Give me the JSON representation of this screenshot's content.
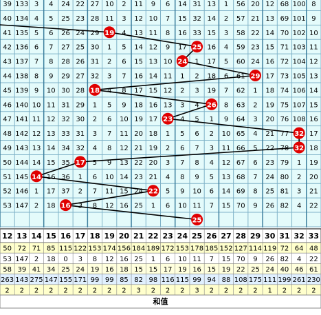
{
  "grid": {
    "rows": [
      [
        39,
        133,
        3,
        4,
        24,
        22,
        27,
        10,
        2,
        11,
        9,
        6,
        14,
        31,
        13,
        1,
        56,
        20,
        12,
        68,
        100,
        8
      ],
      [
        40,
        134,
        4,
        5,
        25,
        23,
        28,
        11,
        3,
        12,
        10,
        7,
        15,
        32,
        14,
        2,
        57,
        21,
        13,
        69,
        101,
        9
      ],
      [
        41,
        135,
        5,
        6,
        26,
        24,
        29,
        {
          "ball": 19
        },
        4,
        13,
        11,
        8,
        16,
        33,
        15,
        3,
        58,
        22,
        14,
        70,
        102,
        10
      ],
      [
        42,
        136,
        6,
        7,
        27,
        25,
        30,
        1,
        5,
        14,
        12,
        9,
        17,
        {
          "ball": 25
        },
        16,
        4,
        59,
        23,
        15,
        71,
        103,
        11
      ],
      [
        43,
        137,
        7,
        8,
        28,
        26,
        31,
        2,
        6,
        15,
        13,
        10,
        {
          "ball": 24
        },
        1,
        17,
        5,
        60,
        24,
        16,
        72,
        104,
        12
      ],
      [
        44,
        138,
        8,
        9,
        29,
        27,
        32,
        3,
        7,
        16,
        14,
        11,
        1,
        2,
        18,
        6,
        61,
        {
          "ball": 29
        },
        17,
        73,
        105,
        13
      ],
      [
        45,
        139,
        9,
        10,
        30,
        28,
        {
          "ball": 18
        },
        4,
        8,
        17,
        15,
        12,
        2,
        3,
        19,
        7,
        62,
        1,
        18,
        74,
        106,
        14
      ],
      [
        46,
        140,
        10,
        11,
        31,
        29,
        1,
        5,
        9,
        18,
        16,
        13,
        3,
        4,
        {
          "ball": 26
        },
        8,
        63,
        2,
        19,
        75,
        107,
        15
      ],
      [
        47,
        141,
        11,
        12,
        32,
        30,
        2,
        6,
        10,
        19,
        17,
        {
          "ball": 23
        },
        4,
        5,
        1,
        9,
        64,
        3,
        20,
        76,
        108,
        16
      ],
      [
        48,
        142,
        12,
        13,
        33,
        31,
        3,
        7,
        11,
        20,
        18,
        1,
        5,
        6,
        2,
        10,
        65,
        4,
        21,
        77,
        {
          "ball": 32
        },
        17
      ],
      [
        49,
        143,
        13,
        14,
        34,
        32,
        4,
        8,
        12,
        21,
        19,
        2,
        6,
        7,
        3,
        11,
        66,
        5,
        22,
        78,
        {
          "ball": 32
        },
        18
      ],
      [
        50,
        144,
        14,
        15,
        35,
        {
          "ball": 17
        },
        5,
        9,
        13,
        22,
        20,
        3,
        7,
        8,
        4,
        12,
        67,
        6,
        23,
        79,
        1,
        19
      ],
      [
        51,
        145,
        {
          "ball": 14
        },
        16,
        36,
        1,
        6,
        10,
        14,
        23,
        21,
        4,
        8,
        9,
        5,
        13,
        68,
        7,
        24,
        80,
        2,
        20
      ],
      [
        52,
        146,
        1,
        17,
        37,
        2,
        7,
        11,
        15,
        24,
        {
          "ball": 22
        },
        5,
        9,
        10,
        6,
        14,
        69,
        8,
        25,
        81,
        3,
        21
      ],
      [
        53,
        147,
        2,
        18,
        {
          "ball": 16
        },
        3,
        8,
        12,
        16,
        25,
        1,
        6,
        10,
        11,
        7,
        15,
        70,
        9,
        26,
        82,
        4,
        22
      ],
      [
        null,
        null,
        null,
        null,
        null,
        null,
        null,
        null,
        null,
        null,
        null,
        null,
        null,
        {
          "ball": 25
        },
        null,
        null,
        null,
        null,
        null,
        null,
        null,
        null
      ]
    ]
  },
  "stats": {
    "header": [
      12,
      13,
      14,
      15,
      16,
      17,
      18,
      19,
      20,
      21,
      22,
      23,
      24,
      25,
      26,
      27,
      28,
      29,
      30,
      31,
      32,
      33
    ],
    "rows": [
      [
        50,
        72,
        71,
        85,
        115,
        122,
        153,
        174,
        156,
        184,
        189,
        172,
        153,
        178,
        185,
        152,
        127,
        114,
        119,
        72,
        64,
        48
      ],
      [
        53,
        147,
        2,
        18,
        0,
        3,
        8,
        12,
        16,
        25,
        1,
        6,
        10,
        11,
        7,
        15,
        70,
        9,
        26,
        82,
        4,
        22
      ],
      [
        58,
        39,
        41,
        34,
        25,
        24,
        19,
        16,
        18,
        15,
        15,
        17,
        19,
        16,
        15,
        19,
        22,
        25,
        24,
        40,
        46,
        61
      ],
      [
        263,
        143,
        275,
        147,
        155,
        171,
        99,
        99,
        85,
        82,
        98,
        116,
        115,
        99,
        94,
        88,
        108,
        175,
        111,
        199,
        261,
        230
      ],
      [
        2,
        2,
        2,
        2,
        2,
        2,
        2,
        2,
        2,
        3,
        2,
        2,
        2,
        3,
        2,
        2,
        2,
        2,
        1,
        2,
        2,
        2
      ]
    ],
    "footer": "和值"
  }
}
